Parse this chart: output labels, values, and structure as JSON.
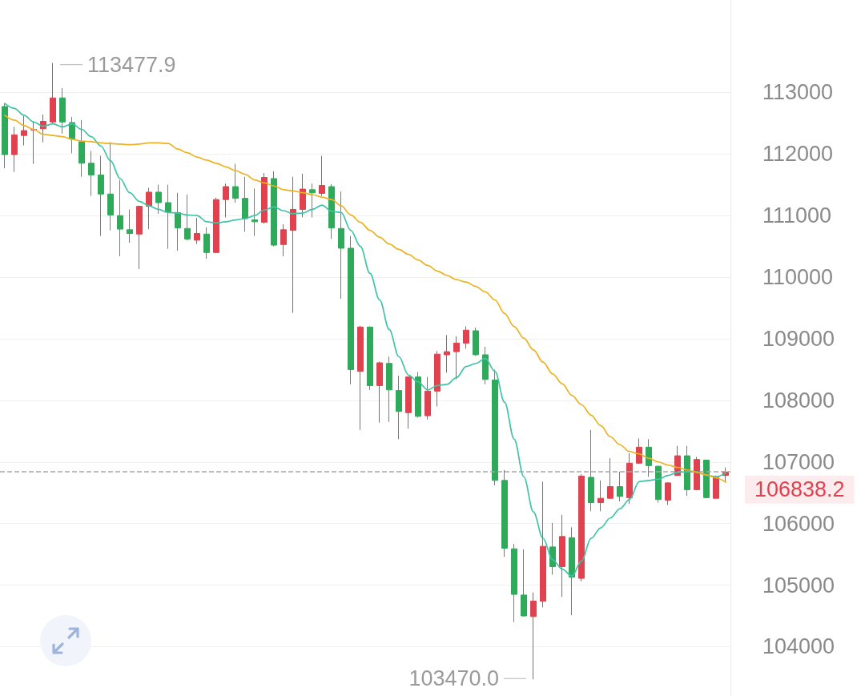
{
  "chart_data": {
    "type": "candlestick",
    "categories": [
      null,
      null,
      null,
      null,
      null,
      null,
      null,
      null,
      null,
      null,
      null,
      null,
      null,
      null,
      null,
      null,
      null,
      null,
      null,
      null,
      null,
      null,
      null,
      null,
      null,
      null,
      null,
      null,
      null,
      null,
      null,
      null,
      null,
      null,
      null,
      null,
      null,
      null,
      null,
      null,
      null,
      null,
      null,
      null,
      null,
      null,
      null,
      null,
      null,
      null,
      null,
      null,
      null,
      null,
      null,
      null,
      null,
      null,
      null,
      null,
      null,
      null,
      null,
      null,
      null,
      null,
      null,
      null,
      null,
      null,
      null,
      null,
      null,
      null,
      null,
      null
    ],
    "ohlc": [
      [
        112770,
        112820,
        111770,
        111990
      ],
      [
        111990,
        112440,
        111710,
        112310
      ],
      [
        112300,
        112620,
        112140,
        112380
      ],
      [
        112390,
        112530,
        111840,
        112400
      ],
      [
        112410,
        112640,
        112190,
        112530
      ],
      [
        112520,
        113477.9,
        112490,
        112910
      ],
      [
        112910,
        113070,
        112330,
        112520
      ],
      [
        112510,
        112600,
        112010,
        112240
      ],
      [
        112200,
        112550,
        111630,
        111850
      ],
      [
        111850,
        112050,
        111320,
        111660
      ],
      [
        111660,
        111970,
        110670,
        111350
      ],
      [
        111350,
        112190,
        110760,
        111010
      ],
      [
        111000,
        111580,
        110340,
        110780
      ],
      [
        110770,
        111100,
        110560,
        110710
      ],
      [
        110700,
        111160,
        110130,
        111150
      ],
      [
        111150,
        111450,
        110780,
        111380
      ],
      [
        111380,
        111500,
        111030,
        111210
      ],
      [
        111210,
        111500,
        110460,
        111060
      ],
      [
        111050,
        111370,
        110430,
        110800
      ],
      [
        110790,
        111340,
        110600,
        110620
      ],
      [
        110600,
        110960,
        110540,
        110710
      ],
      [
        110700,
        110810,
        110300,
        110400
      ],
      [
        110400,
        111290,
        110390,
        111260
      ],
      [
        111260,
        111520,
        110970,
        111470
      ],
      [
        111470,
        111840,
        111210,
        111280
      ],
      [
        111280,
        111630,
        110740,
        110950
      ],
      [
        110930,
        111440,
        110670,
        110900
      ],
      [
        110890,
        111690,
        110870,
        111620
      ],
      [
        111600,
        111720,
        110500,
        110520
      ],
      [
        110530,
        110860,
        110340,
        110770
      ],
      [
        110760,
        111630,
        109420,
        111100
      ],
      [
        111100,
        111680,
        110970,
        111430
      ],
      [
        111420,
        111520,
        110970,
        111370
      ],
      [
        111360,
        111970,
        111320,
        111490
      ],
      [
        111470,
        111510,
        110620,
        110800
      ],
      [
        110790,
        111390,
        109650,
        110470
      ],
      [
        110470,
        110670,
        108260,
        108500
      ],
      [
        108470,
        109210,
        107520,
        109190
      ],
      [
        109190,
        109200,
        108170,
        108240
      ],
      [
        108240,
        108630,
        107640,
        108610
      ],
      [
        108600,
        108710,
        107650,
        108170
      ],
      [
        108160,
        108400,
        107370,
        107820
      ],
      [
        107800,
        108390,
        107540,
        108380
      ],
      [
        108380,
        108460,
        107720,
        107740
      ],
      [
        107750,
        108380,
        107690,
        108150
      ],
      [
        108150,
        108800,
        107900,
        108750
      ],
      [
        108740,
        109060,
        108450,
        108790
      ],
      [
        108790,
        109040,
        108340,
        108930
      ],
      [
        108930,
        109200,
        108840,
        109140
      ],
      [
        109130,
        109180,
        108720,
        108740
      ],
      [
        108740,
        108870,
        108260,
        108340
      ],
      [
        108330,
        108500,
        106620,
        106700
      ],
      [
        106700,
        106870,
        105460,
        105600
      ],
      [
        105590,
        105670,
        104400,
        104850
      ],
      [
        104840,
        105580,
        104490,
        104500
      ],
      [
        104490,
        104880,
        103470.0,
        104740
      ],
      [
        104740,
        106680,
        104640,
        105630
      ],
      [
        105620,
        106010,
        105170,
        105300
      ],
      [
        105300,
        106140,
        104810,
        105790
      ],
      [
        105770,
        105940,
        104510,
        105130
      ],
      [
        105110,
        106800,
        105060,
        106770
      ],
      [
        106750,
        107520,
        106200,
        106340
      ],
      [
        106340,
        106700,
        106200,
        106410
      ],
      [
        106410,
        107060,
        106400,
        106600
      ],
      [
        106600,
        106840,
        106360,
        106440
      ],
      [
        106420,
        107140,
        106320,
        106980
      ],
      [
        106980,
        107380,
        106970,
        107240
      ],
      [
        107240,
        107370,
        106760,
        106940
      ],
      [
        106930,
        106940,
        106340,
        106390
      ],
      [
        106380,
        106670,
        106300,
        106660
      ],
      [
        106780,
        107260,
        106770,
        107100
      ],
      [
        107100,
        107260,
        106450,
        106550
      ],
      [
        106550,
        107080,
        106540,
        107040
      ],
      [
        107030,
        107030,
        106410,
        106420
      ],
      [
        106410,
        106780,
        106400,
        106760
      ],
      [
        106780,
        106910,
        106670,
        106838.2
      ]
    ],
    "colors": [
      "#2eaa5a",
      "#e0424f",
      "#e0424f",
      "#e0424f",
      "#e0424f",
      "#e0424f",
      "#2eaa5a",
      "#2eaa5a",
      "#2eaa5a",
      "#2eaa5a",
      "#2eaa5a",
      "#2eaa5a",
      "#2eaa5a",
      "#2eaa5a",
      "#e0424f",
      "#e0424f",
      "#2eaa5a",
      "#2eaa5a",
      "#2eaa5a",
      "#2eaa5a",
      "#e0424f",
      "#2eaa5a",
      "#e0424f",
      "#e0424f",
      "#2eaa5a",
      "#2eaa5a",
      "#2eaa5a",
      "#e0424f",
      "#2eaa5a",
      "#e0424f",
      "#e0424f",
      "#e0424f",
      "#2eaa5a",
      "#e0424f",
      "#2eaa5a",
      "#2eaa5a",
      "#2eaa5a",
      "#e0424f",
      "#2eaa5a",
      "#e0424f",
      "#2eaa5a",
      "#2eaa5a",
      "#e0424f",
      "#2eaa5a",
      "#e0424f",
      "#e0424f",
      "#e0424f",
      "#e0424f",
      "#e0424f",
      "#2eaa5a",
      "#2eaa5a",
      "#2eaa5a",
      "#2eaa5a",
      "#2eaa5a",
      "#2eaa5a",
      "#e0424f",
      "#e0424f",
      "#2eaa5a",
      "#e0424f",
      "#2eaa5a",
      "#e0424f",
      "#2eaa5a",
      "#e0424f",
      "#e0424f",
      "#2eaa5a",
      "#e0424f",
      "#e0424f",
      "#2eaa5a",
      "#2eaa5a",
      "#e0424f",
      "#e0424f",
      "#2eaa5a",
      "#e0424f",
      "#2eaa5a",
      "#e0424f",
      "#e0424f"
    ],
    "series": [
      {
        "type": "line",
        "color": "#3fc4a8",
        "values": [
          112820,
          112740,
          112630,
          112520,
          112450,
          112490,
          112440,
          112490,
          112400,
          112280,
          112130,
          111890,
          111600,
          111370,
          111230,
          111160,
          111100,
          111050,
          111040,
          111010,
          111000,
          110900,
          110880,
          110900,
          110930,
          110950,
          111000,
          111090,
          111140,
          111080,
          111030,
          111040,
          111100,
          111170,
          111070,
          111050,
          110760,
          110500,
          110060,
          109630,
          109150,
          108710,
          108410,
          108300,
          108170,
          108240,
          108260,
          108370,
          108550,
          108600,
          108680,
          108470,
          107970,
          107370,
          106760,
          106190,
          105760,
          105410,
          105260,
          105150,
          105390,
          105760,
          105930,
          106090,
          106240,
          106390,
          106680,
          106700,
          106720,
          106780,
          106830,
          106840,
          106840,
          106780,
          106760,
          106820
        ]
      },
      {
        "type": "line",
        "color": "#ebb321",
        "values": [
          112630,
          112550,
          112460,
          112400,
          112320,
          112300,
          112280,
          112240,
          112210,
          112200,
          112180,
          112170,
          112160,
          112150,
          112160,
          112180,
          112180,
          112170,
          112080,
          112020,
          111950,
          111900,
          111850,
          111790,
          111730,
          111670,
          111580,
          111530,
          111480,
          111420,
          111400,
          111370,
          111340,
          111300,
          111260,
          111160,
          111010,
          110890,
          110760,
          110650,
          110540,
          110450,
          110370,
          110280,
          110190,
          110100,
          110030,
          109960,
          109920,
          109850,
          109760,
          109630,
          109410,
          109200,
          109010,
          108820,
          108620,
          108430,
          108270,
          108080,
          107930,
          107760,
          107590,
          107410,
          107280,
          107170,
          107130,
          107060,
          107000,
          106950,
          106910,
          106870,
          106830,
          106790,
          106740,
          106670
        ]
      }
    ],
    "ylim": [
      103200,
      114500
    ],
    "yticks": [
      104000,
      105000,
      106000,
      107000,
      108000,
      109000,
      110000,
      111000,
      112000,
      113000
    ],
    "grid": "y",
    "tick_labels": "y",
    "ref_lines": [
      {
        "axis": "y",
        "value": 106838.2,
        "label": "106838.2",
        "color": "#a6a6a6",
        "line_style": "dashed"
      }
    ],
    "annotations": [
      "113477.9",
      "103470.0"
    ]
  }
}
